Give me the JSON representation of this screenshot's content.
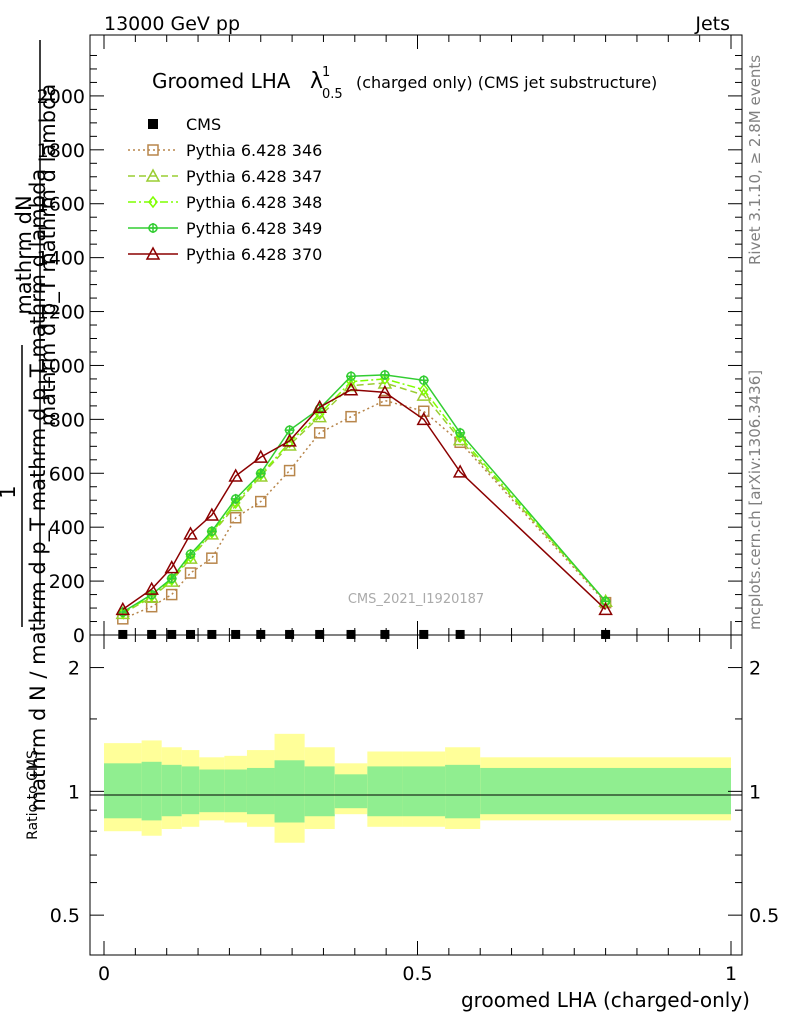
{
  "header": {
    "left": "13000 GeV pp",
    "right": "Jets"
  },
  "side": {
    "rivet": "Rivet 3.1.10, ≥ 2.8M events",
    "mcplots": "mcplots.cern.ch [arXiv:1306.3436]"
  },
  "watermark": "CMS_2021_I1920187",
  "title": {
    "main": "Groomed LHA",
    "symbol": "λ",
    "sup": "1",
    "sub": "0.5",
    "rest": "(charged only) (CMS jet substructure)"
  },
  "ylabel_top": {
    "numerator": "mathrm dN",
    "denominator": "mathrm d p_T mathrm d lambda",
    "extra": "mathrm d N / mathrm d p",
    "num1": "1",
    "den2": "mathrm d N / mathrm d p_T mathrm d p_T mathrm d lambda"
  },
  "ratio_ylabel": "Ratio to CMS",
  "xlabel": "groomed LHA (charged-only)",
  "colors": {
    "p346": "#b8864b",
    "p347": "#9acd32",
    "p348": "#7fff00",
    "p349": "#32cd32",
    "p370": "#8b0000",
    "band_inner": "#90ee90",
    "band_outer": "#ffff99"
  },
  "chart_data": {
    "type": "line",
    "x_axis": {
      "range": [
        0,
        1
      ],
      "ticks": [
        0,
        0.5,
        1
      ],
      "tick_labels": [
        "0",
        "0.5",
        "1"
      ]
    },
    "y_axis": {
      "range": [
        0,
        2200
      ],
      "ticks": [
        0,
        200,
        400,
        600,
        800,
        1000,
        1200,
        1400,
        1600,
        1800,
        2000
      ],
      "tick_labels": [
        "0",
        "200",
        "400",
        "600",
        "800",
        "1000",
        "1200",
        "1400",
        "1600",
        "1800",
        "2000"
      ]
    },
    "ratio_axis": {
      "range": [
        0.4,
        2.4
      ],
      "scale": "log",
      "ticks": [
        0.5,
        1,
        2
      ],
      "tick_labels": [
        "0.5",
        "1",
        "2"
      ]
    },
    "legend_position": "top-left",
    "cms": {
      "name": "CMS",
      "x": [
        0.03,
        0.076,
        0.108,
        0.138,
        0.172,
        0.21,
        0.25,
        0.296,
        0.344,
        0.394,
        0.448,
        0.51,
        0.568,
        0.8
      ],
      "y": [
        2,
        2,
        2,
        2,
        2,
        2,
        2,
        2,
        2,
        2,
        2,
        2,
        2,
        2
      ]
    },
    "series": [
      {
        "name": "Pythia 6.428 346",
        "marker": "square",
        "x": [
          0.03,
          0.076,
          0.108,
          0.138,
          0.172,
          0.21,
          0.25,
          0.296,
          0.344,
          0.394,
          0.448,
          0.51,
          0.568,
          0.8
        ],
        "values": [
          60,
          105,
          150,
          230,
          285,
          435,
          495,
          610,
          750,
          810,
          870,
          830,
          715,
          120
        ]
      },
      {
        "name": "Pythia 6.428 347",
        "marker": "triangle",
        "x": [
          0.03,
          0.076,
          0.108,
          0.138,
          0.172,
          0.21,
          0.25,
          0.296,
          0.344,
          0.394,
          0.448,
          0.51,
          0.568,
          0.8
        ],
        "values": [
          80,
          140,
          200,
          285,
          375,
          480,
          590,
          705,
          810,
          925,
          935,
          890,
          725,
          125
        ]
      },
      {
        "name": "Pythia 6.428 348",
        "marker": "diamond",
        "x": [
          0.03,
          0.076,
          0.108,
          0.138,
          0.172,
          0.21,
          0.25,
          0.296,
          0.344,
          0.394,
          0.448,
          0.51,
          0.568,
          0.8
        ],
        "values": [
          82,
          145,
          205,
          290,
          380,
          490,
          595,
          715,
          820,
          940,
          950,
          910,
          735,
          125
        ]
      },
      {
        "name": "Pythia 6.428 349",
        "marker": "circle",
        "x": [
          0.03,
          0.076,
          0.108,
          0.138,
          0.172,
          0.21,
          0.25,
          0.296,
          0.344,
          0.394,
          0.448,
          0.51,
          0.568,
          0.8
        ],
        "values": [
          85,
          150,
          210,
          300,
          385,
          505,
          600,
          760,
          840,
          960,
          965,
          945,
          750,
          125
        ]
      },
      {
        "name": "Pythia 6.428 370",
        "marker": "triangle",
        "x": [
          0.03,
          0.076,
          0.108,
          0.138,
          0.172,
          0.21,
          0.25,
          0.296,
          0.344,
          0.394,
          0.448,
          0.51,
          0.568,
          0.8
        ],
        "values": [
          95,
          170,
          250,
          375,
          445,
          590,
          660,
          720,
          845,
          910,
          900,
          800,
          605,
          95
        ]
      }
    ],
    "ratio_band": {
      "edges": [
        0,
        0.06,
        0.092,
        0.124,
        0.152,
        0.192,
        0.228,
        0.272,
        0.32,
        0.368,
        0.42,
        0.476,
        0.544,
        0.6,
        1.0
      ],
      "inner_hi": [
        1.17,
        1.18,
        1.16,
        1.15,
        1.13,
        1.13,
        1.14,
        1.19,
        1.15,
        1.1,
        1.15,
        1.15,
        1.16,
        1.14
      ],
      "inner_lo": [
        0.86,
        0.85,
        0.87,
        0.88,
        0.89,
        0.89,
        0.88,
        0.84,
        0.87,
        0.91,
        0.87,
        0.87,
        0.86,
        0.88
      ],
      "outer_hi": [
        1.31,
        1.33,
        1.28,
        1.26,
        1.21,
        1.22,
        1.26,
        1.38,
        1.28,
        1.17,
        1.25,
        1.25,
        1.28,
        1.21
      ],
      "outer_lo": [
        0.8,
        0.78,
        0.81,
        0.82,
        0.85,
        0.84,
        0.82,
        0.75,
        0.81,
        0.88,
        0.82,
        0.82,
        0.81,
        0.85
      ]
    }
  }
}
